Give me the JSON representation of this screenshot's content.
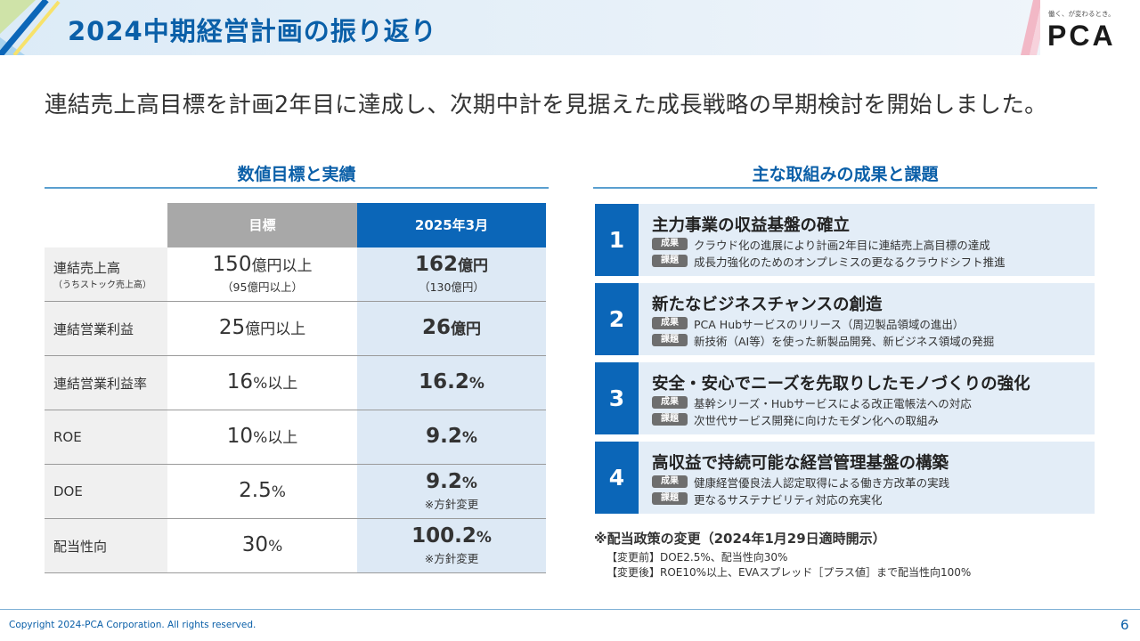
{
  "header": {
    "title": "2024中期経営計画の振り返り",
    "tagline": "働く、が変わるとき。",
    "logo_text": "PCA"
  },
  "subtitle": "連結売上高目標を計画2年目に達成し、次期中計を見据えた成長戦略の早期検討を開始しました。",
  "left_section": {
    "title": "数値目標と実績"
  },
  "right_section": {
    "title": "主な取組みの成果と課題"
  },
  "table": {
    "headers": {
      "target": "目標",
      "actual": "2025年3月"
    },
    "rows": [
      {
        "label": "連結売上高",
        "label_sub": "（うちストック売上高）",
        "target_num": "150",
        "target_unit": "億円以上",
        "target_sub": "（95億円以上）",
        "actual_num": "162",
        "actual_unit": "億円",
        "actual_sub": "（130億円）"
      },
      {
        "label": "連結営業利益",
        "label_sub": "",
        "target_num": "25",
        "target_unit": "億円以上",
        "target_sub": "",
        "actual_num": "26",
        "actual_unit": "億円",
        "actual_sub": ""
      },
      {
        "label": "連結営業利益率",
        "label_sub": "",
        "target_num": "16",
        "target_unit": "%以上",
        "target_sub": "",
        "actual_num": "16.2",
        "actual_unit": "%",
        "actual_sub": ""
      },
      {
        "label": "ROE",
        "label_sub": "",
        "target_num": "10",
        "target_unit": "%以上",
        "target_sub": "",
        "actual_num": "9.2",
        "actual_unit": "%",
        "actual_sub": ""
      },
      {
        "label": "DOE",
        "label_sub": "",
        "target_num": "2.5",
        "target_unit": "%",
        "target_sub": "",
        "actual_num": "9.2",
        "actual_unit": "%",
        "actual_sub": "※方針変更"
      },
      {
        "label": "配当性向",
        "label_sub": "",
        "target_num": "30",
        "target_unit": "%",
        "target_sub": "",
        "actual_num": "100.2",
        "actual_unit": "%",
        "actual_sub": "※方針変更"
      }
    ]
  },
  "initiatives": [
    {
      "number": "1",
      "title": "主力事業の収益基盤の確立",
      "result_tag": "成果",
      "result": "クラウド化の進展により計画2年目に連結売上高目標の達成",
      "issue_tag": "課題",
      "issue": "成長力強化のためのオンプレミスの更なるクラウドシフト推進"
    },
    {
      "number": "2",
      "title": "新たなビジネスチャンスの創造",
      "result_tag": "成果",
      "result": "PCA Hubサービスのリリース（周辺製品領域の進出）",
      "issue_tag": "課題",
      "issue": "新技術（AI等）を使った新製品開発、新ビジネス領域の発掘"
    },
    {
      "number": "3",
      "title": "安全・安心でニーズを先取りしたモノづくりの強化",
      "result_tag": "成果",
      "result": "基幹シリーズ・Hubサービスによる改正電帳法への対応",
      "issue_tag": "課題",
      "issue": "次世代サービス開発に向けたモダン化への取組み"
    },
    {
      "number": "4",
      "title": "高収益で持続可能な経営管理基盤の構築",
      "result_tag": "成果",
      "result": "健康経営優良法人認定取得による働き方改革の実践",
      "issue_tag": "課題",
      "issue": "更なるサステナビリティ対応の充実化"
    }
  ],
  "note": {
    "title": "※配当政策の変更（2024年1月29日適時開示）",
    "before": "【変更前】DOE2.5%、配当性向30%",
    "after": "【変更後】ROE10%以上、EVAスプレッド［プラス値］まで配当性向100%"
  },
  "footer": {
    "copyright": "Copyright 2024-PCA Corporation. All rights reserved.",
    "page_number": "6"
  },
  "colors": {
    "brand_blue": "#0a5fa8",
    "accent_blue": "#0b66b8",
    "header_gray": "#a8a8a8",
    "card_bg": "#e3edf7",
    "tag_gray": "#6e6e6e"
  }
}
